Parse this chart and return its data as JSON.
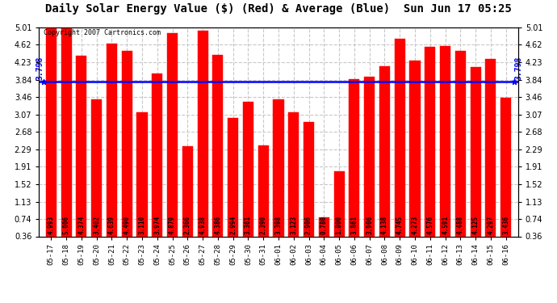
{
  "title": "Daily Solar Energy Value ($) (Red) & Average (Blue)  Sun Jun 17 05:25",
  "copyright": "Copyright 2007 Cartronics.com",
  "average": 3.798,
  "bar_color": "#FF0000",
  "avg_line_color": "#0000FF",
  "background_color": "#FFFFFF",
  "plot_bg_color": "#FFFFFF",
  "grid_color": "#C8C8C8",
  "labels": [
    "05-17",
    "05-18",
    "05-19",
    "05-20",
    "05-21",
    "05-22",
    "05-23",
    "05-24",
    "05-25",
    "05-26",
    "05-27",
    "05-28",
    "05-29",
    "05-30",
    "05-31",
    "06-01",
    "06-02",
    "06-03",
    "06-04",
    "06-05",
    "06-06",
    "06-07",
    "06-08",
    "06-09",
    "06-10",
    "06-11",
    "06-12",
    "06-13",
    "06-14",
    "06-15",
    "06-16"
  ],
  "values": [
    4.993,
    5.006,
    4.374,
    3.402,
    4.639,
    4.49,
    3.11,
    3.974,
    4.879,
    2.366,
    4.938,
    4.386,
    2.994,
    3.361,
    2.39,
    3.398,
    3.123,
    2.906,
    0.78,
    1.8,
    3.861,
    3.906,
    4.138,
    4.745,
    4.273,
    4.576,
    4.591,
    4.488,
    4.125,
    4.297,
    3.436
  ],
  "ylim": [
    0.36,
    5.01
  ],
  "yticks": [
    0.36,
    0.74,
    1.13,
    1.52,
    1.91,
    2.29,
    2.68,
    3.07,
    3.46,
    3.84,
    4.23,
    4.62,
    5.01
  ],
  "avg_label": "3.798",
  "title_fontsize": 10,
  "label_fontsize": 5.5,
  "tick_fontsize": 7,
  "bar_width": 0.7
}
